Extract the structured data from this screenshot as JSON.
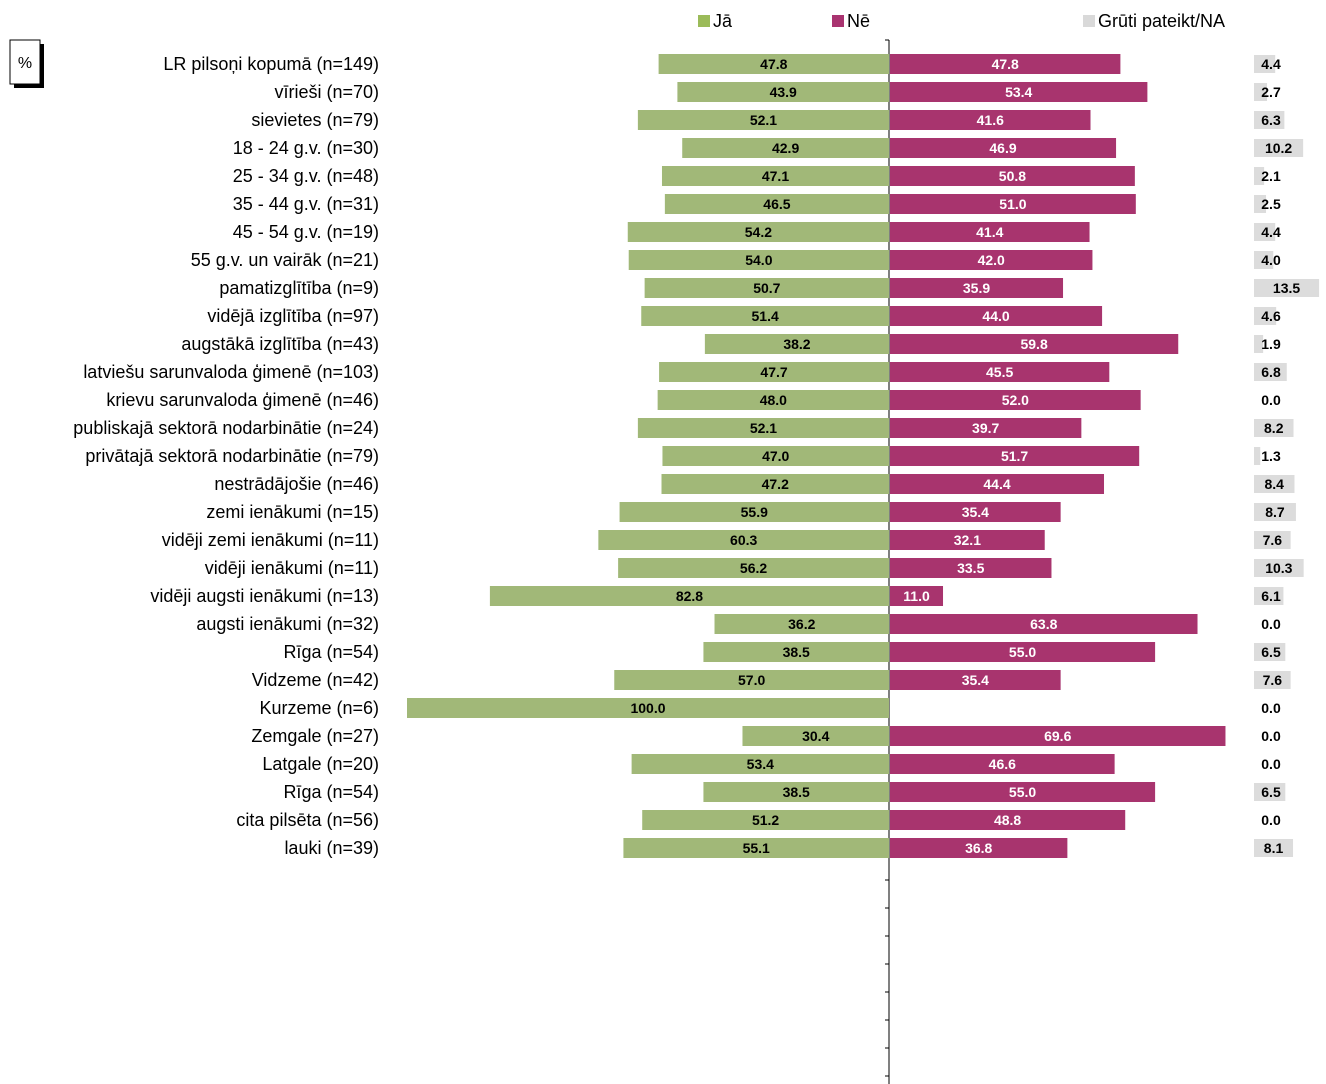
{
  "chart_data": {
    "type": "bar",
    "unit_label": "%",
    "legend": [
      {
        "name": "Jā",
        "color": "#9BBB59"
      },
      {
        "name": "Nē",
        "color": "#A93370"
      },
      {
        "name": "Grūti pateikt/NA",
        "color": "#D9D9D9"
      }
    ],
    "colors": {
      "ja": "#A1B878",
      "ne": "#A8346E",
      "na": "#DCDCDC"
    },
    "rows": [
      {
        "label": "LR pilsoņi kopumā (n=149)",
        "ja": 47.8,
        "ne": 47.8,
        "na": 4.4
      },
      {
        "label": "vīrieši (n=70)",
        "ja": 43.9,
        "ne": 53.4,
        "na": 2.7
      },
      {
        "label": "sievietes (n=79)",
        "ja": 52.1,
        "ne": 41.6,
        "na": 6.3
      },
      {
        "label": "18 - 24 g.v. (n=30)",
        "ja": 42.9,
        "ne": 46.9,
        "na": 10.2
      },
      {
        "label": "25 - 34 g.v. (n=48)",
        "ja": 47.1,
        "ne": 50.8,
        "na": 2.1
      },
      {
        "label": "35 - 44 g.v. (n=31)",
        "ja": 46.5,
        "ne": 51.0,
        "na": 2.5
      },
      {
        "label": "45 - 54 g.v. (n=19)",
        "ja": 54.2,
        "ne": 41.4,
        "na": 4.4
      },
      {
        "label": "55 g.v. un vairāk (n=21)",
        "ja": 54.0,
        "ne": 42.0,
        "na": 4.0
      },
      {
        "label": "pamatizglītība (n=9)",
        "ja": 50.7,
        "ne": 35.9,
        "na": 13.5
      },
      {
        "label": "vidējā izglītība (n=97)",
        "ja": 51.4,
        "ne": 44.0,
        "na": 4.6
      },
      {
        "label": "augstākā izglītība (n=43)",
        "ja": 38.2,
        "ne": 59.8,
        "na": 1.9
      },
      {
        "label": "latviešu sarunvaloda ģimenē (n=103)",
        "ja": 47.7,
        "ne": 45.5,
        "na": 6.8
      },
      {
        "label": "krievu sarunvaloda ģimenē (n=46)",
        "ja": 48.0,
        "ne": 52.0,
        "na": 0.0
      },
      {
        "label": "publiskajā sektorā nodarbinātie (n=24)",
        "ja": 52.1,
        "ne": 39.7,
        "na": 8.2
      },
      {
        "label": "privātajā sektorā nodarbinātie (n=79)",
        "ja": 47.0,
        "ne": 51.7,
        "na": 1.3
      },
      {
        "label": "nestrādājošie (n=46)",
        "ja": 47.2,
        "ne": 44.4,
        "na": 8.4
      },
      {
        "label": "zemi ienākumi (n=15)",
        "ja": 55.9,
        "ne": 35.4,
        "na": 8.7
      },
      {
        "label": "vidēji zemi ienākumi (n=11)",
        "ja": 60.3,
        "ne": 32.1,
        "na": 7.6
      },
      {
        "label": "vidēji ienākumi (n=11)",
        "ja": 56.2,
        "ne": 33.5,
        "na": 10.3
      },
      {
        "label": "vidēji augsti ienākumi (n=13)",
        "ja": 82.8,
        "ne": 11.0,
        "na": 6.1
      },
      {
        "label": "augsti ienākumi (n=32)",
        "ja": 36.2,
        "ne": 63.8,
        "na": 0.0
      },
      {
        "label": "Rīga (n=54)",
        "ja": 38.5,
        "ne": 55.0,
        "na": 6.5
      },
      {
        "label": "Vidzeme (n=42)",
        "ja": 57.0,
        "ne": 35.4,
        "na": 7.6
      },
      {
        "label": "Kurzeme (n=6)",
        "ja": 100.0,
        "ne": null,
        "na": 0.0
      },
      {
        "label": "Zemgale (n=27)",
        "ja": 30.4,
        "ne": 69.6,
        "na": 0.0
      },
      {
        "label": "Latgale (n=20)",
        "ja": 53.4,
        "ne": 46.6,
        "na": 0.0
      },
      {
        "label": "Rīga (n=54)",
        "ja": 38.5,
        "ne": 55.0,
        "na": 6.5
      },
      {
        "label": "cita pilsēta (n=56)",
        "ja": 51.2,
        "ne": 48.8,
        "na": 0.0
      },
      {
        "label": "lauki (n=39)",
        "ja": 55.1,
        "ne": 36.8,
        "na": 8.1
      }
    ],
    "groups": [
      [
        0
      ],
      [
        1,
        2
      ],
      [
        3,
        4,
        5,
        6,
        7
      ],
      [
        8,
        9,
        10
      ],
      [
        11,
        12
      ],
      [
        13,
        14,
        15
      ],
      [
        16,
        17,
        18,
        19,
        20
      ],
      [
        21,
        22,
        23,
        24,
        25
      ],
      [
        26,
        27,
        28
      ]
    ]
  }
}
